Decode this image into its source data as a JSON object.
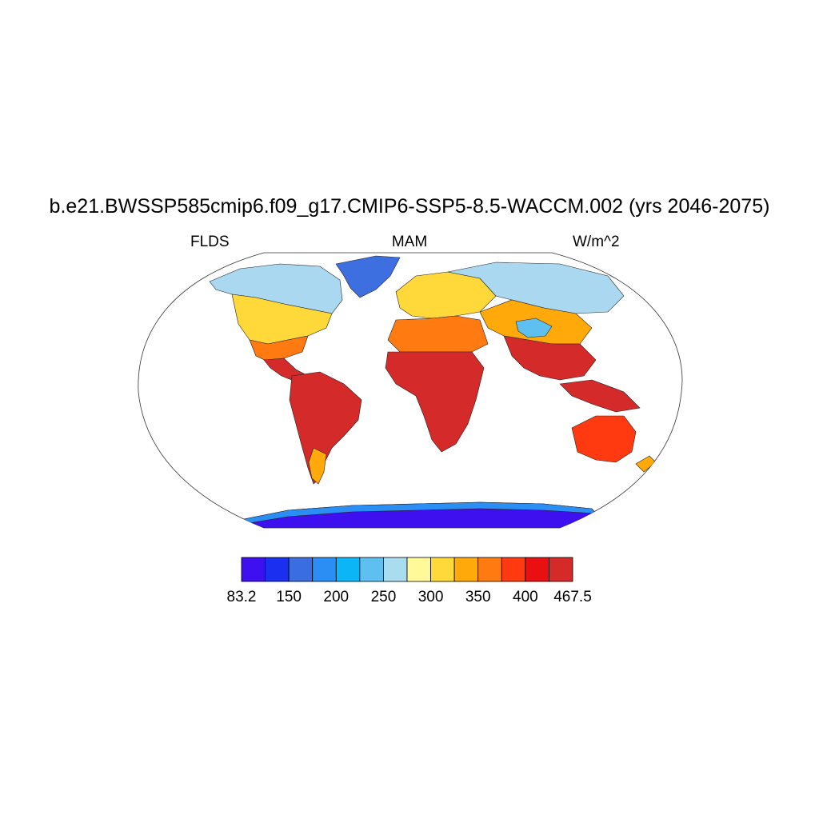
{
  "title": "b.e21.BWSSP585cmip6.f09_g17.CMIP6-SSP5-8.5-WACCM.002 (yrs 2046-2075)",
  "left_label": "FLDS",
  "center_label": "MAM",
  "right_label": "W/m^2",
  "colorbar": {
    "colors": [
      "#3e10f0",
      "#1b2ff0",
      "#3a6ee0",
      "#2a8ef5",
      "#0cb5f5",
      "#5ec0f0",
      "#aadcf0",
      "#fff99a",
      "#ffd83a",
      "#ffaa0a",
      "#ff7a10",
      "#ff3a10",
      "#e81010",
      "#d42a2a"
    ],
    "labels": [
      "83.2",
      "150",
      "200",
      "250",
      "300",
      "350",
      "400",
      "467.5"
    ]
  }
}
